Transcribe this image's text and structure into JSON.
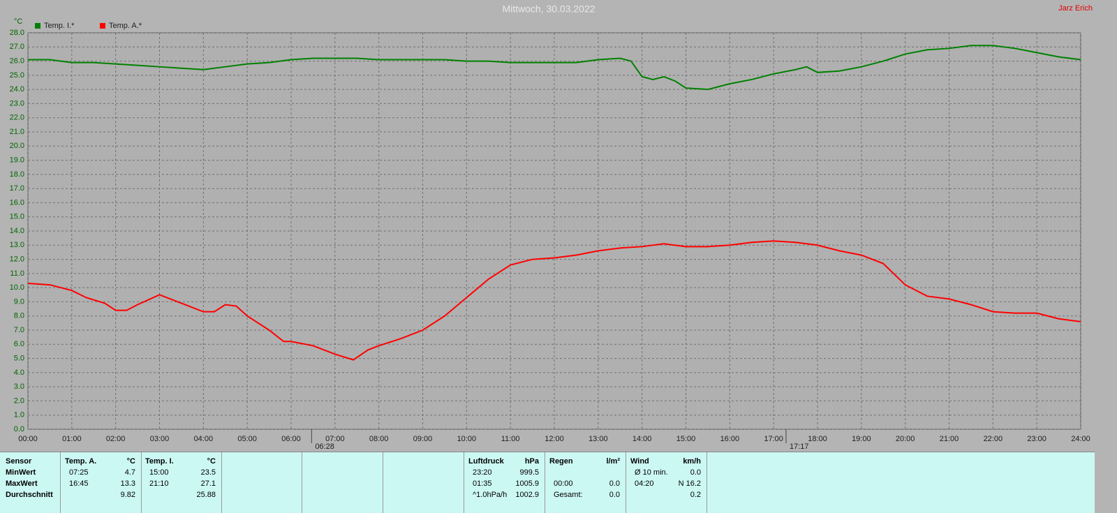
{
  "chart_data": {
    "type": "line",
    "title": "Mittwoch, 30.03.2022",
    "author": "Jarz Erich",
    "y_unit": "°C",
    "grid": true,
    "xlim": [
      0,
      24
    ],
    "xticks": [
      {
        "value": 0,
        "label": "00:00"
      },
      {
        "value": 1,
        "label": "01:00"
      },
      {
        "value": 2,
        "label": "02:00"
      },
      {
        "value": 3,
        "label": "03:00"
      },
      {
        "value": 4,
        "label": "04:00"
      },
      {
        "value": 5,
        "label": "05:00"
      },
      {
        "value": 6,
        "label": "06:00"
      },
      {
        "value": 7,
        "label": "07:00"
      },
      {
        "value": 8,
        "label": "08:00"
      },
      {
        "value": 9,
        "label": "09:00"
      },
      {
        "value": 10,
        "label": "10:00"
      },
      {
        "value": 11,
        "label": "11:00"
      },
      {
        "value": 12,
        "label": "12:00"
      },
      {
        "value": 13,
        "label": "13:00"
      },
      {
        "value": 14,
        "label": "14:00"
      },
      {
        "value": 15,
        "label": "15:00"
      },
      {
        "value": 16,
        "label": "16:00"
      },
      {
        "value": 17,
        "label": "17:00"
      },
      {
        "value": 18,
        "label": "18:00"
      },
      {
        "value": 19,
        "label": "19:00"
      },
      {
        "value": 20,
        "label": "20:00"
      },
      {
        "value": 21,
        "label": "21:00"
      },
      {
        "value": 22,
        "label": "22:00"
      },
      {
        "value": 23,
        "label": "23:00"
      },
      {
        "value": 24,
        "label": "24:00"
      }
    ],
    "ylim": [
      0,
      28
    ],
    "yticks": [
      {
        "value": 0,
        "label": "0.0"
      },
      {
        "value": 1,
        "label": "1.0"
      },
      {
        "value": 2,
        "label": "2.0"
      },
      {
        "value": 3,
        "label": "3.0"
      },
      {
        "value": 4,
        "label": "4.0"
      },
      {
        "value": 5,
        "label": "5.0"
      },
      {
        "value": 6,
        "label": "6.0"
      },
      {
        "value": 7,
        "label": "7.0"
      },
      {
        "value": 8,
        "label": "8.0"
      },
      {
        "value": 9,
        "label": "9.0"
      },
      {
        "value": 10,
        "label": "10.0"
      },
      {
        "value": 11,
        "label": "11.0"
      },
      {
        "value": 12,
        "label": "12.0"
      },
      {
        "value": 13,
        "label": "13.0"
      },
      {
        "value": 14,
        "label": "14.0"
      },
      {
        "value": 15,
        "label": "15.0"
      },
      {
        "value": 16,
        "label": "16.0"
      },
      {
        "value": 17,
        "label": "17.0"
      },
      {
        "value": 18,
        "label": "18.0"
      },
      {
        "value": 19,
        "label": "19.0"
      },
      {
        "value": 20,
        "label": "20.0"
      },
      {
        "value": 21,
        "label": "21.0"
      },
      {
        "value": 22,
        "label": "22.0"
      },
      {
        "value": 23,
        "label": "23.0"
      },
      {
        "value": 24,
        "label": "24.0"
      },
      {
        "value": 25,
        "label": "25.0"
      },
      {
        "value": 26,
        "label": "26.0"
      },
      {
        "value": 27,
        "label": "27.0"
      },
      {
        "value": 28,
        "label": "28.0"
      }
    ],
    "series": [
      {
        "name": "Temp. I.*",
        "color": "#008000",
        "x": [
          0,
          0.5,
          1,
          1.5,
          2,
          2.5,
          3,
          3.5,
          4,
          4.5,
          5,
          5.5,
          6,
          6.5,
          7,
          7.5,
          8,
          8.5,
          9,
          9.5,
          10,
          10.5,
          11,
          11.5,
          12,
          12.5,
          13,
          13.5,
          13.75,
          14,
          14.25,
          14.5,
          14.75,
          15,
          15.5,
          16,
          16.5,
          17,
          17.5,
          17.75,
          18,
          18.5,
          19,
          19.5,
          20,
          20.5,
          21,
          21.5,
          22,
          22.5,
          23,
          23.5,
          24
        ],
        "values": [
          26.1,
          26.1,
          25.9,
          25.9,
          25.8,
          25.7,
          25.6,
          25.5,
          25.4,
          25.6,
          25.8,
          25.9,
          26.1,
          26.2,
          26.2,
          26.2,
          26.1,
          26.1,
          26.1,
          26.1,
          26.0,
          26.0,
          25.9,
          25.9,
          25.9,
          25.9,
          26.1,
          26.2,
          26.0,
          24.9,
          24.7,
          24.9,
          24.6,
          24.1,
          24.0,
          24.4,
          24.7,
          25.1,
          25.4,
          25.6,
          25.2,
          25.3,
          25.6,
          26.0,
          26.5,
          26.8,
          26.9,
          27.1,
          27.1,
          26.9,
          26.6,
          26.3,
          26.1
        ]
      },
      {
        "name": "Temp. A.*",
        "color": "#ff0000",
        "x": [
          0,
          0.5,
          1,
          1.33,
          1.75,
          2,
          2.25,
          2.5,
          3,
          3.5,
          4,
          4.25,
          4.5,
          4.75,
          5,
          5.5,
          5.83,
          6,
          6.5,
          7,
          7.42,
          7.75,
          8,
          8.5,
          9,
          9.5,
          10,
          10.5,
          11,
          11.5,
          12,
          12.5,
          13,
          13.5,
          14,
          14.5,
          15,
          15.5,
          16,
          16.5,
          17,
          17.5,
          18,
          18.5,
          19,
          19.5,
          20,
          20.5,
          21,
          21.5,
          22,
          22.5,
          23,
          23.5,
          24
        ],
        "values": [
          10.3,
          10.2,
          9.8,
          9.3,
          8.9,
          8.4,
          8.4,
          8.8,
          9.5,
          8.9,
          8.3,
          8.3,
          8.8,
          8.7,
          8.0,
          7.0,
          6.2,
          6.2,
          5.9,
          5.3,
          4.9,
          5.6,
          5.9,
          6.4,
          7.0,
          8.0,
          9.3,
          10.6,
          11.6,
          12.0,
          12.1,
          12.3,
          12.6,
          12.8,
          12.9,
          13.1,
          12.9,
          12.9,
          13.0,
          13.2,
          13.3,
          13.2,
          13.0,
          12.6,
          12.3,
          11.7,
          10.2,
          9.4,
          9.2,
          8.8,
          8.3,
          8.2,
          8.2,
          7.8,
          7.6
        ]
      }
    ],
    "annotations": [
      {
        "x": 6.4667,
        "label": "06:28"
      },
      {
        "x": 17.2833,
        "label": "17:17"
      }
    ]
  },
  "stats_table": {
    "blocks": [
      {
        "header": [
          "Sensor",
          null
        ],
        "rows": [
          [
            "MinWert",
            null
          ],
          [
            "MaxWert",
            null
          ],
          [
            "Durchschnitt",
            null
          ]
        ]
      },
      {
        "header": [
          "Temp. A.",
          "°C"
        ],
        "rows": [
          [
            "07:25",
            "4.7"
          ],
          [
            "16:45",
            "13.3"
          ],
          [
            null,
            "9.82"
          ]
        ]
      },
      {
        "header": [
          "Temp. I.",
          "°C"
        ],
        "rows": [
          [
            "15:00",
            "23.5"
          ],
          [
            "21:10",
            "27.1"
          ],
          [
            null,
            "25.88"
          ]
        ]
      },
      {
        "header": [
          "Luftdruck",
          "hPa"
        ],
        "rows": [
          [
            "23:20",
            "999.5"
          ],
          [
            "01:35",
            "1005.9"
          ],
          [
            "^1.0hPa/h",
            "1002.9"
          ]
        ]
      },
      {
        "header": [
          "Regen",
          "l/m²"
        ],
        "rows": [
          [
            null,
            null
          ],
          [
            "00:00",
            "0.0"
          ],
          [
            "Gesamt:",
            "0.0"
          ]
        ]
      },
      {
        "header": [
          "Wind",
          "km/h"
        ],
        "rows": [
          [
            "Ø 10 min.",
            "0.0"
          ],
          [
            "04:20",
            "N 16.2"
          ],
          [
            null,
            "0.2"
          ]
        ]
      }
    ]
  }
}
